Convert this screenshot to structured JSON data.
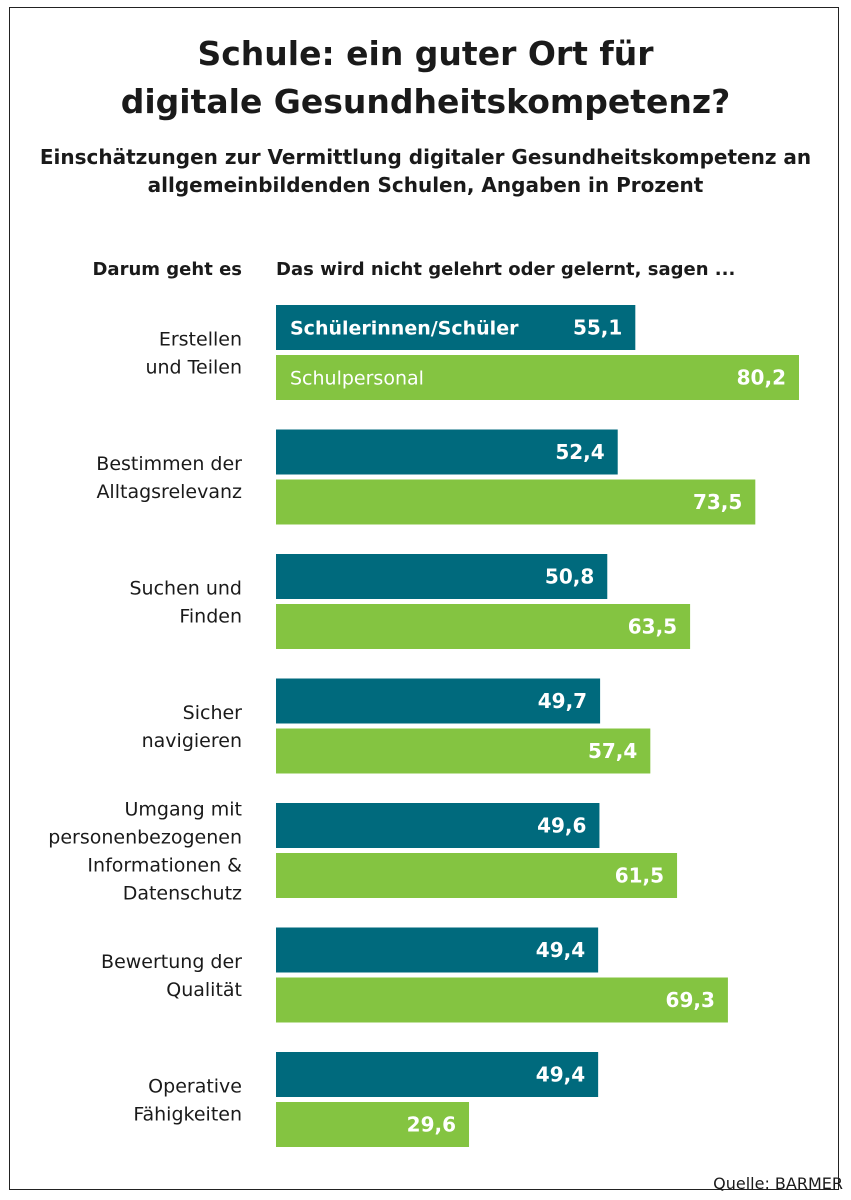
{
  "title_line1": "Schule: ein guter Ort für",
  "title_line2": "digitale Gesundheitskompetenz?",
  "subtitle_line1": "Einschätzungen zur Vermittlung digitaler Gesundheitskompetenz an",
  "subtitle_line2": "allgemeinbildenden Schulen, Angaben in Prozent",
  "column_left_header": "Darum geht es",
  "column_right_header": "Das wird nicht gelehrt oder gelernt, sagen ...",
  "source": "Quelle: BARMER",
  "colors": {
    "students": "#006a7d",
    "staff": "#84c441",
    "text": "#1a1a1a",
    "bar_text": "#ffffff"
  },
  "chart_data": {
    "type": "bar",
    "orientation": "horizontal",
    "categories": [
      [
        "Erstellen",
        "und Teilen"
      ],
      [
        "Bestimmen der",
        "Alltagsrelevanz"
      ],
      [
        "Suchen und",
        "Finden"
      ],
      [
        "Sicher",
        "navigieren"
      ],
      [
        "Umgang mit",
        "personenbezogenen",
        "Informationen &",
        "Datenschutz"
      ],
      [
        "Bewertung der",
        "Qualität"
      ],
      [
        "Operative",
        "Fähigkeiten"
      ]
    ],
    "series": [
      {
        "name": "Schülerinnen/Schüler",
        "values": [
          55.1,
          52.4,
          50.8,
          49.7,
          49.6,
          49.4,
          49.4
        ],
        "labels": [
          "55,1",
          "52,4",
          "50,8",
          "49,7",
          "49,6",
          "49,4",
          "49,4"
        ]
      },
      {
        "name": "Schulpersonal",
        "values": [
          80.2,
          73.5,
          63.5,
          57.4,
          61.5,
          69.3,
          29.6
        ],
        "labels": [
          "80,2",
          "73,5",
          "63,5",
          "57,4",
          "61,5",
          "69,3",
          "29,6"
        ]
      }
    ],
    "xlim": [
      0,
      80.2
    ],
    "grid": false,
    "legend": "inside-first-bars"
  }
}
